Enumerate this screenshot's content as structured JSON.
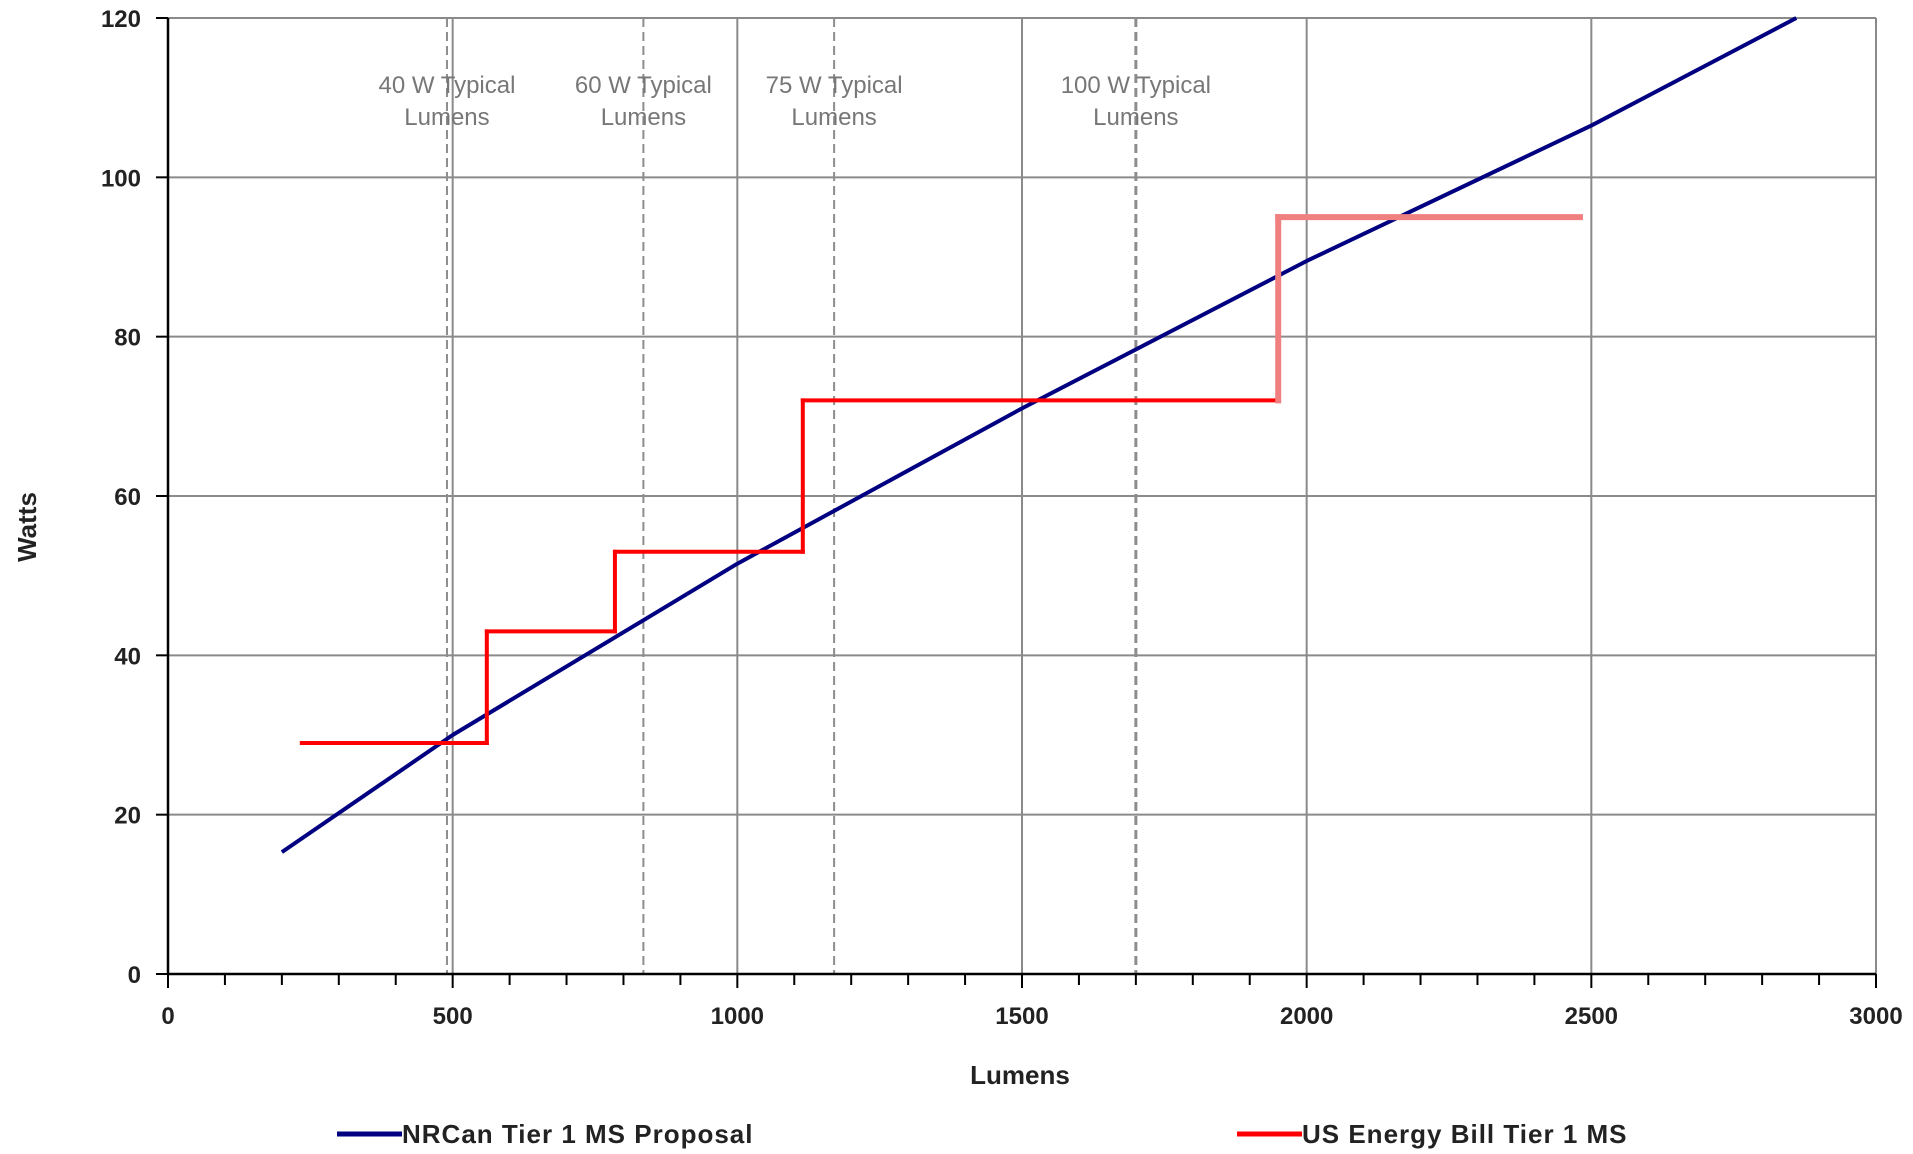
{
  "chart_data": {
    "type": "line",
    "xlabel": "Lumens",
    "ylabel": "Watts",
    "xlim": [
      0,
      3000
    ],
    "ylim": [
      0,
      120
    ],
    "x_ticks": [
      0,
      500,
      1000,
      1500,
      2000,
      2500,
      3000
    ],
    "y_ticks": [
      0,
      20,
      40,
      60,
      80,
      100,
      120
    ],
    "x_tick_labels": [
      "0",
      "500",
      "1000",
      "1500",
      "2000",
      "2500",
      "3000"
    ],
    "y_tick_labels": [
      "0",
      "20",
      "40",
      "60",
      "80",
      "100",
      "120"
    ],
    "x_minor_step": 100,
    "grid": true,
    "legend_position": "bottom",
    "series": [
      {
        "name": "NRCan Tier 1 MS Proposal",
        "color": "#000080",
        "style": "line",
        "x": [
          200,
          500,
          1000,
          1500,
          2000,
          2500,
          2860
        ],
        "y": [
          15.3,
          30.0,
          51.5,
          71.0,
          89.5,
          106.5,
          120.0
        ]
      },
      {
        "name": "US Energy Bill Tier 1 MS",
        "color": "#ff0000",
        "style": "step",
        "x": [
          235,
          560,
          560,
          785,
          785,
          1115,
          1115,
          1950,
          1950,
          2480
        ],
        "y": [
          29,
          29,
          43,
          43,
          53,
          53,
          72,
          72,
          95,
          95
        ],
        "segment_colors": [
          "#ff0000",
          "#ff0000",
          "#ff0000",
          "#ff0000",
          "#ff0000",
          "#ff0000",
          "#ff0000",
          "#f08080",
          "#f08080"
        ]
      }
    ],
    "reference_lines": [
      {
        "x": 490,
        "label_line1": "40 W Typical",
        "label_line2": "Lumens"
      },
      {
        "x": 835,
        "label_line1": "60 W Typical",
        "label_line2": "Lumens"
      },
      {
        "x": 1170,
        "label_line1": "75 W Typical",
        "label_line2": "Lumens"
      },
      {
        "x": 1700,
        "label_line1": "100 W Typical",
        "label_line2": "Lumens"
      }
    ]
  }
}
